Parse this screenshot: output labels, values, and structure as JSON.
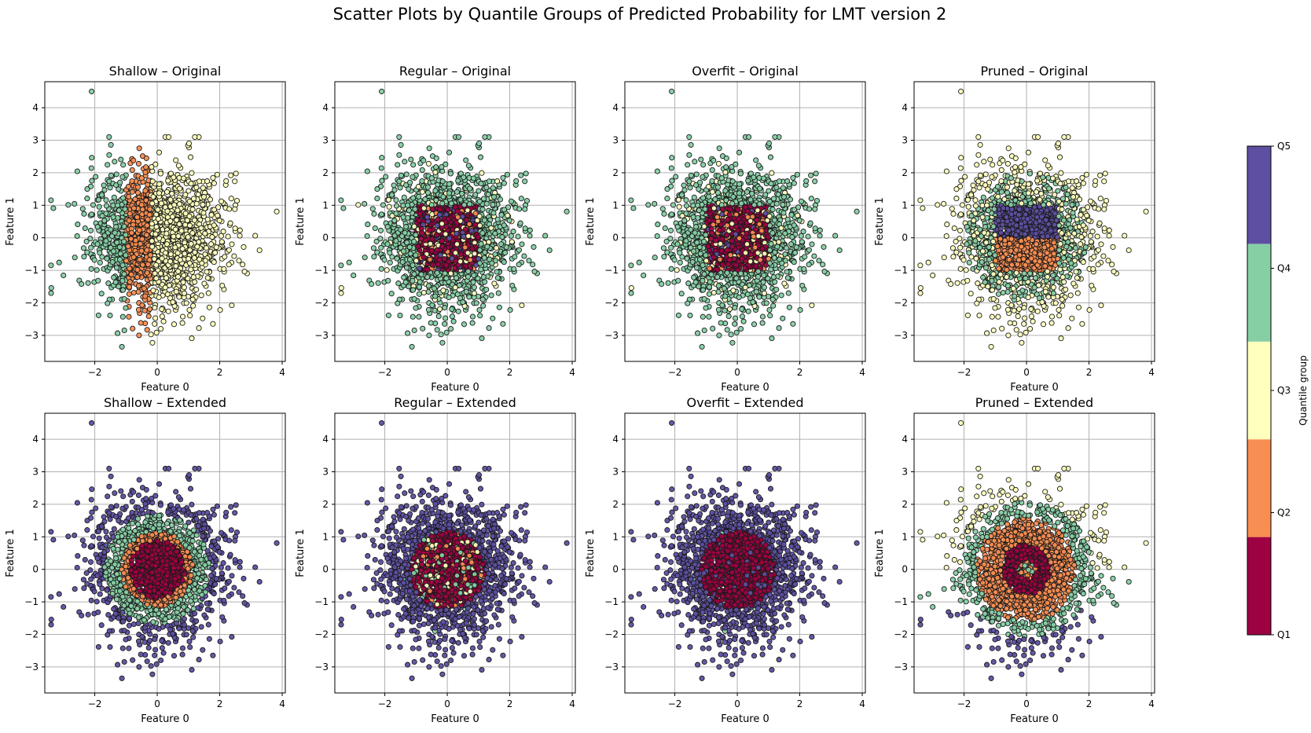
{
  "figure": {
    "title": "Scatter Plots by Quantile Groups of Predicted Probability for LMT version 2"
  },
  "colors": {
    "Q1": "#9e0142",
    "Q2": "#f98e52",
    "Q3": "#ffffbe",
    "Q4": "#86cfa5",
    "Q5": "#5e4fa2",
    "grid": "#b0b0b0",
    "edge": "#1a1a1a"
  },
  "colorbar": {
    "label": "Quantile group",
    "ticks": [
      "Q1",
      "Q2",
      "Q3",
      "Q4",
      "Q5"
    ]
  },
  "chart_data": [
    {
      "type": "scatter",
      "title": "Shallow – Original",
      "xlabel": "Feature 0",
      "ylabel": "Feature 1",
      "xlim": [
        -3.6,
        4.1
      ],
      "ylim": [
        -3.8,
        4.8
      ],
      "xticks": [
        -2,
        0,
        2,
        4
      ],
      "yticks": [
        -3,
        -2,
        -1,
        0,
        1,
        2,
        3,
        4
      ],
      "grid": true,
      "n_points": 2000,
      "pattern": "Q2 in vertical band -1<x<-0.2; Q4 for x<-1; Q3 for x>-0.2"
    },
    {
      "type": "scatter",
      "title": "Regular – Original",
      "xlabel": "Feature 0",
      "ylabel": "Feature 1",
      "xlim": [
        -3.6,
        4.1
      ],
      "ylim": [
        -3.8,
        4.8
      ],
      "xticks": [
        -2,
        0,
        2,
        4
      ],
      "yticks": [
        -3,
        -2,
        -1,
        0,
        1,
        2,
        3,
        4
      ],
      "grid": true,
      "n_points": 2000,
      "pattern": "Q1 core square |x|,|y|<1 mixed with Q5/Q2; Q4 elsewhere; scattered Q3"
    },
    {
      "type": "scatter",
      "title": "Overfit – Original",
      "xlabel": "Feature 0",
      "ylabel": "Feature 1",
      "xlim": [
        -3.6,
        4.1
      ],
      "ylim": [
        -3.8,
        4.8
      ],
      "xticks": [
        -2,
        0,
        2,
        4
      ],
      "yticks": [
        -3,
        -2,
        -1,
        0,
        1,
        2,
        3,
        4
      ],
      "grid": true,
      "n_points": 2000,
      "pattern": "Q1 core |x|,|y|<1 mixed with Q2/Q5; Q4 elsewhere; scattered Q3"
    },
    {
      "type": "scatter",
      "title": "Pruned – Original",
      "xlabel": "Feature 0",
      "ylabel": "Feature 1",
      "xlim": [
        -3.6,
        4.1
      ],
      "ylim": [
        -3.8,
        4.8
      ],
      "xticks": [
        -2,
        0,
        2,
        4
      ],
      "yticks": [
        -3,
        -2,
        -1,
        0,
        1,
        2,
        3,
        4
      ],
      "grid": true,
      "n_points": 2000,
      "pattern": "Q5 in square -1<x<1, 0<y<1; Q2 in square -1<x<1, -1<y<0; Q3 outer; Q4 middle"
    },
    {
      "type": "scatter",
      "title": "Shallow – Extended",
      "xlabel": "Feature 0",
      "ylabel": "Feature 1",
      "xlim": [
        -3.6,
        4.1
      ],
      "ylim": [
        -3.8,
        4.8
      ],
      "xticks": [
        -2,
        0,
        2,
        4
      ],
      "yticks": [
        -3,
        -2,
        -1,
        0,
        1,
        2,
        3,
        4
      ],
      "grid": true,
      "n_points": 2000,
      "pattern": "Concentric rings by radius: Q1 r<0.9, Q2 r<1.15, Q4 r<1.7, Q5 outside"
    },
    {
      "type": "scatter",
      "title": "Regular – Extended",
      "xlabel": "Feature 0",
      "ylabel": "Feature 1",
      "xlim": [
        -3.6,
        4.1
      ],
      "ylim": [
        -3.8,
        4.8
      ],
      "xticks": [
        -2,
        0,
        2,
        4
      ],
      "yticks": [
        -3,
        -2,
        -1,
        0,
        1,
        2,
        3,
        4
      ],
      "grid": true,
      "n_points": 2000,
      "pattern": "Q1 core r<1.2 with mixed Q2/Q3/Q4; Q5 outside"
    },
    {
      "type": "scatter",
      "title": "Overfit – Extended",
      "xlabel": "Feature 0",
      "ylabel": "Feature 1",
      "xlim": [
        -3.6,
        4.1
      ],
      "ylim": [
        -3.8,
        4.8
      ],
      "xticks": [
        -2,
        0,
        2,
        4
      ],
      "yticks": [
        -3,
        -2,
        -1,
        0,
        1,
        2,
        3,
        4
      ],
      "grid": true,
      "n_points": 2000,
      "pattern": "Q1 core r<1.2; Q5 outside; rare Q4"
    },
    {
      "type": "scatter",
      "title": "Pruned – Extended",
      "xlabel": "Feature 0",
      "ylabel": "Feature 1",
      "xlim": [
        -3.6,
        4.1
      ],
      "ylim": [
        -3.8,
        4.8
      ],
      "xticks": [
        -2,
        0,
        2,
        4
      ],
      "yticks": [
        -3,
        -2,
        -1,
        0,
        1,
        2,
        3,
        4
      ],
      "grid": true,
      "n_points": 2000,
      "pattern": "Q1 ring 0.3<r<0.8; Q2 r<1.6; Q4 r<2.1 (and lower band); Q3 top outer; Q5 bottom outer"
    }
  ]
}
